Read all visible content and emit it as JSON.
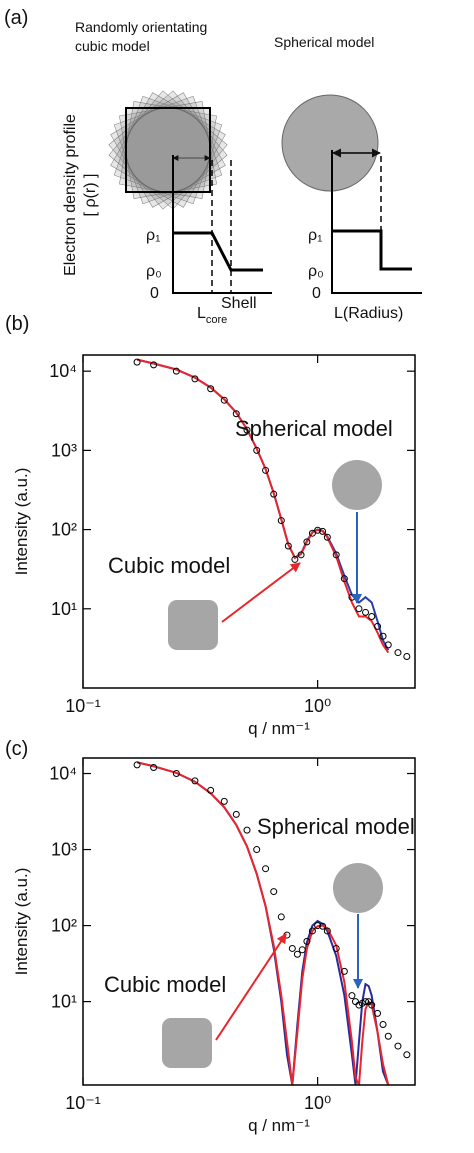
{
  "panel_a": {
    "label": "(a)",
    "cubic": {
      "title_lines": [
        "Randomly orientating",
        "cubic model"
      ],
      "rho1": "ρ₁",
      "rho0": "ρ₀",
      "zero": "0",
      "l_core": {
        "base": "L",
        "sub": "core"
      },
      "shell": "Shell"
    },
    "spherical": {
      "title": "Spherical model",
      "rho1": "ρ₁",
      "rho0": "ρ₀",
      "zero": "0",
      "radius": "L(Radius)"
    },
    "y_label_lines": [
      "Electron density profile",
      "[ ρ(r) ]"
    ]
  },
  "chart_data": [
    {
      "type": "line",
      "panel_label": "(b)",
      "xlabel": "q / nm⁻¹",
      "ylabel": "Intensity (a.u.)",
      "xscale": "log",
      "yscale": "log",
      "xlim": [
        0.1,
        2.6
      ],
      "ylim": [
        1,
        16000
      ],
      "xticks": [
        {
          "value": 0.1,
          "label": "10⁻¹"
        },
        {
          "value": 1,
          "label": "10⁰"
        }
      ],
      "yticks": [
        {
          "value": 10,
          "label": "10¹"
        },
        {
          "value": 100,
          "label": "10²"
        },
        {
          "value": 1000,
          "label": "10³"
        },
        {
          "value": 10000,
          "label": "10⁴"
        }
      ],
      "x": [
        0.17,
        0.2,
        0.25,
        0.3,
        0.35,
        0.4,
        0.45,
        0.5,
        0.55,
        0.6,
        0.65,
        0.7,
        0.75,
        0.8,
        0.85,
        0.9,
        0.95,
        1.0,
        1.05,
        1.1,
        1.2,
        1.3,
        1.4,
        1.5,
        1.6,
        1.7,
        1.8,
        1.9,
        2.0,
        2.2,
        2.4
      ],
      "series": [
        {
          "color": "#000000",
          "marker": "open-circle",
          "values": [
            13000,
            12000,
            10000,
            8000,
            6000,
            4300,
            2900,
            1800,
            1000,
            560,
            280,
            130,
            62,
            42,
            48,
            70,
            90,
            98,
            95,
            80,
            48,
            24,
            14,
            10,
            9,
            8,
            6,
            4.5,
            3.5,
            2.8,
            2.5
          ]
        },
        {
          "name": "Spherical model",
          "color": "#2b3fa8",
          "values": [
            14000,
            12500,
            10500,
            8300,
            6200,
            4400,
            3000,
            1850,
            1050,
            580,
            290,
            135,
            65,
            44,
            50,
            72,
            93,
            100,
            97,
            82,
            50,
            26,
            15,
            12,
            14,
            12,
            7,
            4,
            3,
            null,
            null
          ]
        },
        {
          "name": "Cubic model",
          "color": "#e8262b",
          "values": [
            14000,
            12500,
            10500,
            8300,
            6200,
            4400,
            3000,
            1850,
            1050,
            580,
            290,
            135,
            65,
            44,
            49,
            70,
            92,
            99,
            96,
            80,
            46,
            22,
            12,
            8,
            8,
            7,
            5,
            3.5,
            2.8,
            null,
            null
          ]
        }
      ]
    },
    {
      "type": "line",
      "panel_label": "(c)",
      "xlabel": "q / nm⁻¹",
      "ylabel": "Intensity (a.u.)",
      "xscale": "log",
      "yscale": "log",
      "xlim": [
        0.1,
        2.6
      ],
      "ylim": [
        0.8,
        16000
      ],
      "xticks": [
        {
          "value": 0.1,
          "label": "10⁻¹"
        },
        {
          "value": 1,
          "label": "10⁰"
        }
      ],
      "yticks": [
        {
          "value": 10,
          "label": "10¹"
        },
        {
          "value": 100,
          "label": "10²"
        },
        {
          "value": 1000,
          "label": "10³"
        },
        {
          "value": 10000,
          "label": "10⁴"
        }
      ],
      "x": [
        0.17,
        0.2,
        0.25,
        0.3,
        0.35,
        0.4,
        0.45,
        0.5,
        0.55,
        0.6,
        0.65,
        0.7,
        0.74,
        0.78,
        0.82,
        0.86,
        0.9,
        0.95,
        1.0,
        1.05,
        1.1,
        1.2,
        1.3,
        1.4,
        1.45,
        1.5,
        1.55,
        1.6,
        1.65,
        1.7,
        1.8,
        1.9,
        2.0,
        2.2,
        2.4
      ],
      "series": [
        {
          "color": "#000000",
          "marker": "open-circle",
          "values": [
            13000,
            12000,
            10000,
            8000,
            6000,
            4300,
            2900,
            1800,
            1000,
            560,
            280,
            130,
            75,
            50,
            42,
            48,
            62,
            85,
            100,
            98,
            85,
            50,
            25,
            12,
            10,
            9,
            9.5,
            10,
            10,
            9,
            7,
            5,
            3.5,
            2.6,
            2
          ]
        },
        {
          "name": "Spherical model",
          "color": "#2a2a9e",
          "values": [
            14000,
            12500,
            10200,
            7800,
            5500,
            3600,
            2100,
            1100,
            480,
            180,
            50,
            10,
            2,
            0.8,
            5,
            25,
            60,
            100,
            115,
            105,
            85,
            40,
            12,
            2,
            0.8,
            3,
            10,
            17,
            16,
            12,
            4,
            1.2,
            0.8,
            null,
            null
          ]
        },
        {
          "name": "Cubic model",
          "color": "#e8262b",
          "values": [
            14000,
            12500,
            10200,
            7800,
            5500,
            3600,
            2100,
            1100,
            480,
            180,
            55,
            12,
            3,
            0.8,
            4,
            20,
            50,
            85,
            98,
            100,
            92,
            55,
            18,
            3,
            1,
            0.8,
            3,
            8,
            10,
            9,
            4,
            1.5,
            0.8,
            null,
            null
          ]
        }
      ]
    }
  ]
}
